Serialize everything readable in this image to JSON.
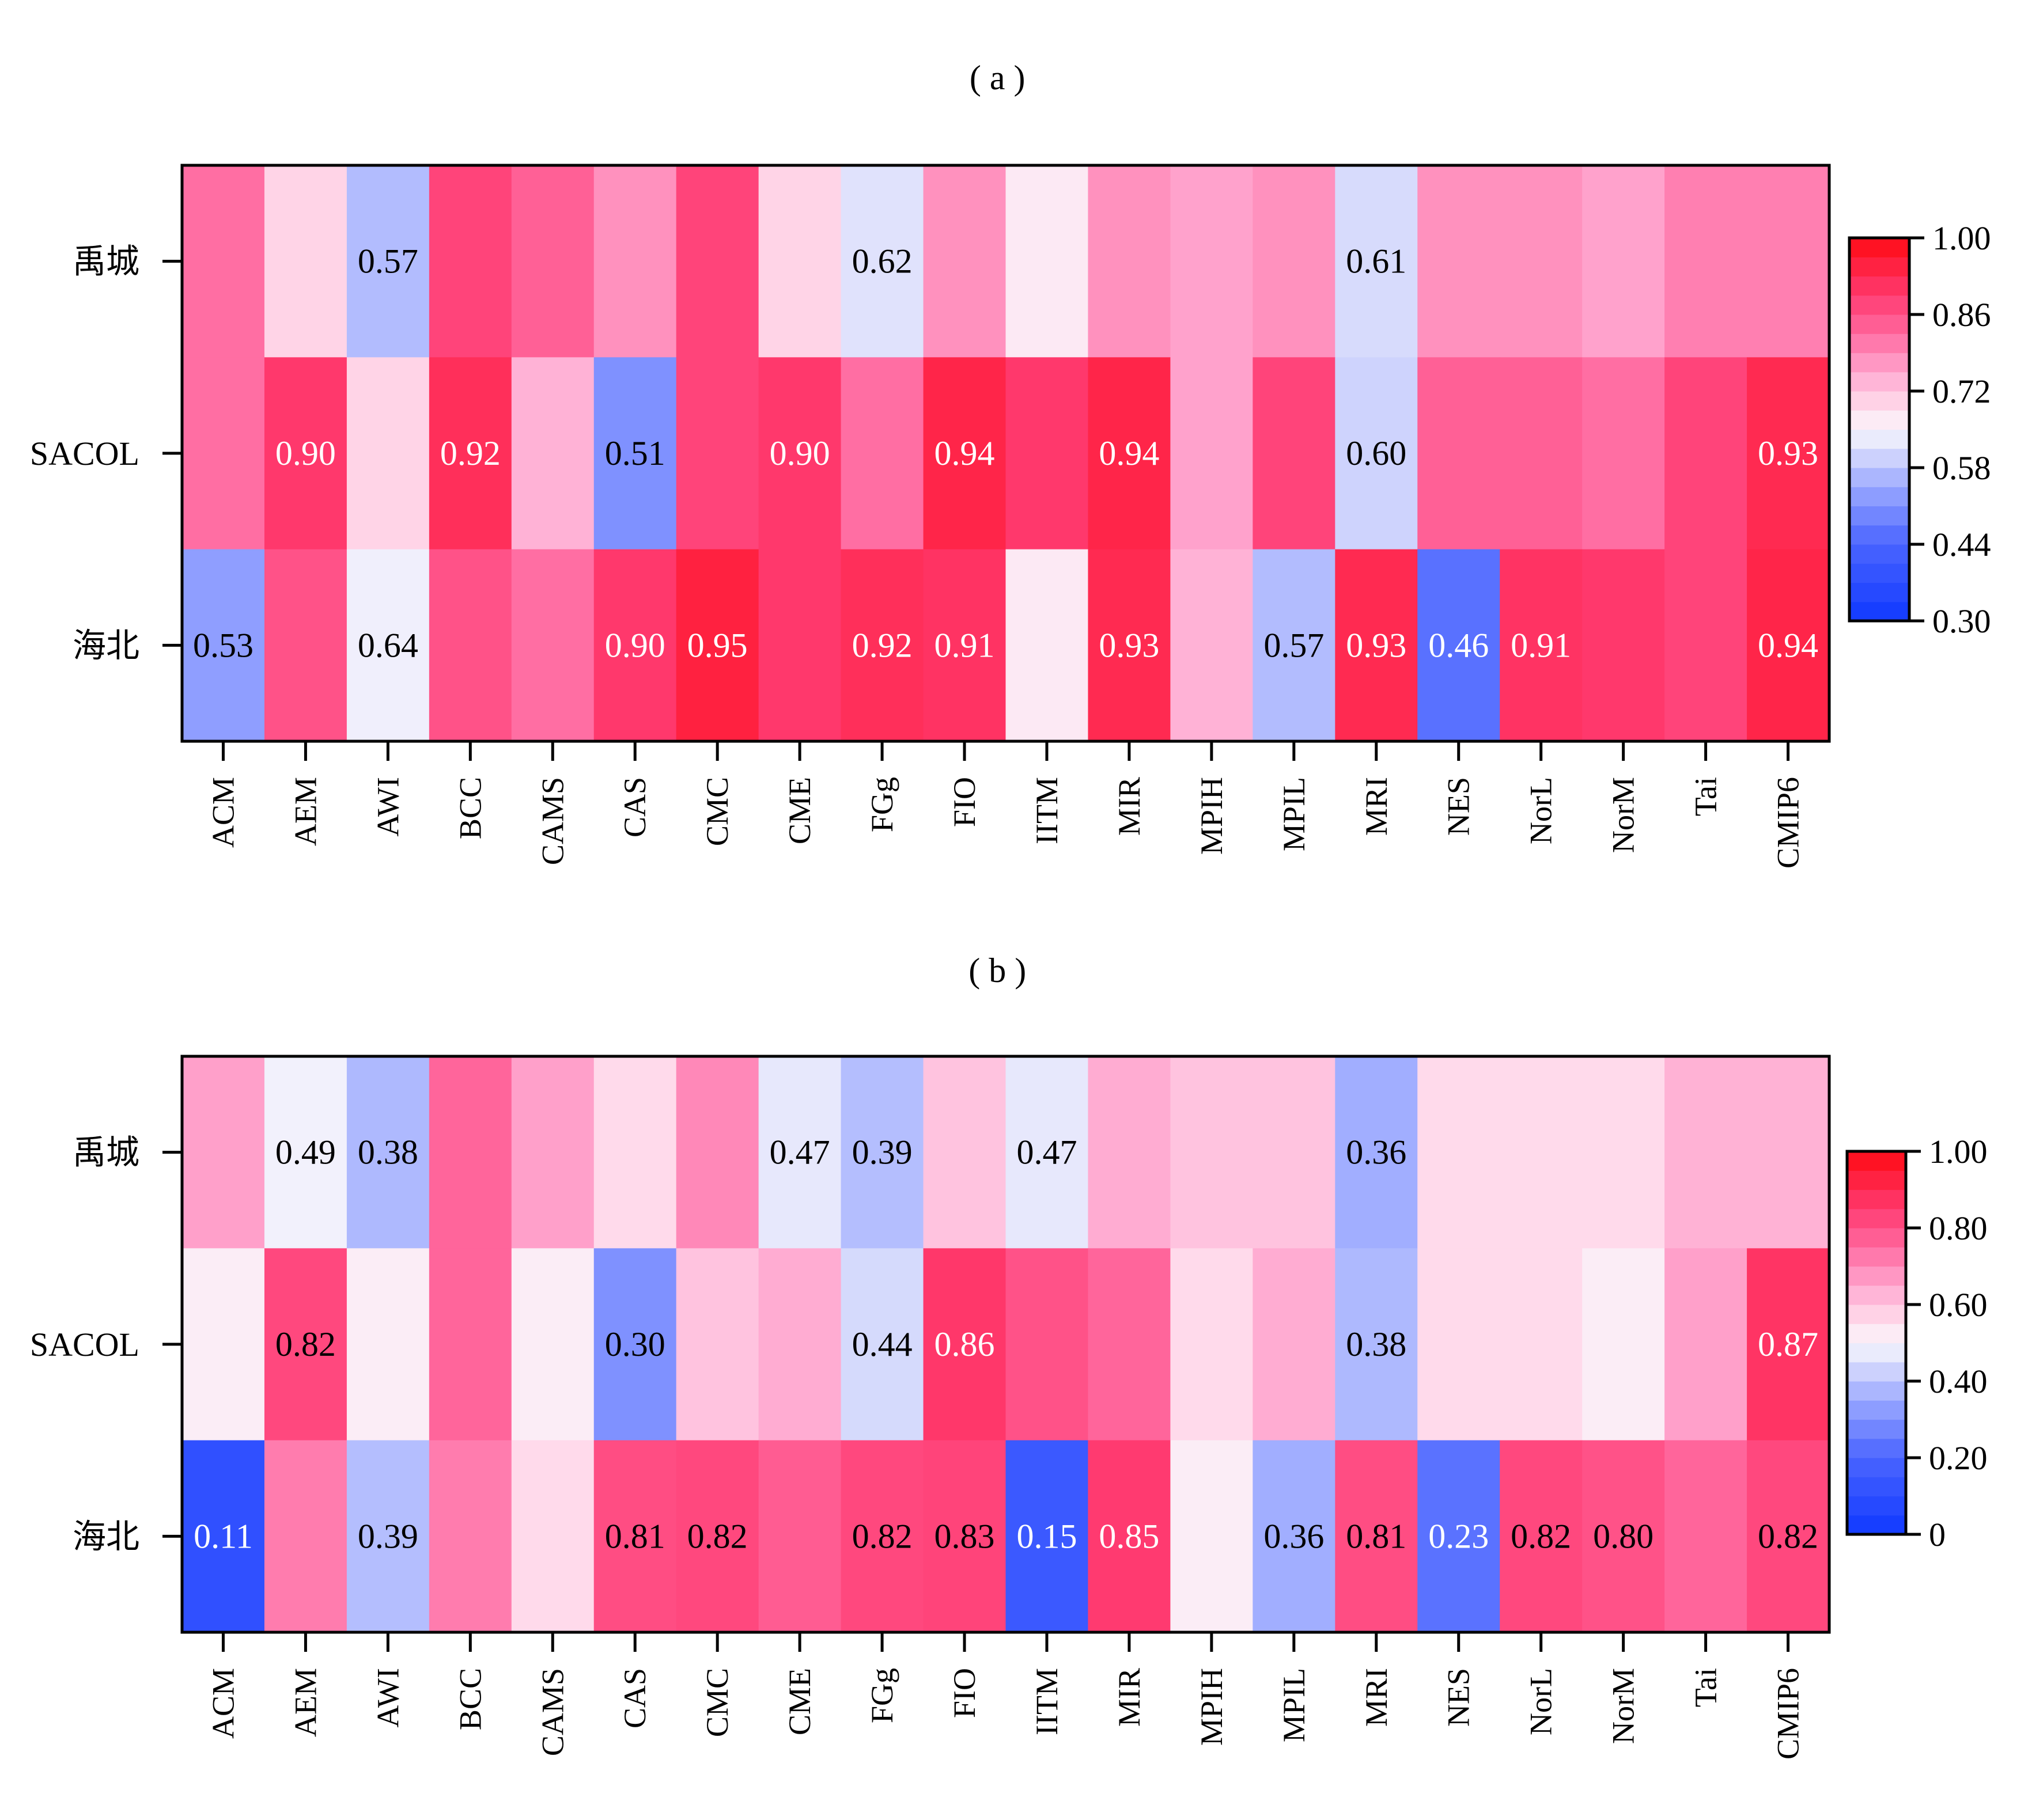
{
  "chart_data": [
    {
      "type": "heatmap",
      "title": "( a )",
      "rows": [
        "禹城",
        "SACOL",
        "海北"
      ],
      "columns": [
        "ACM",
        "AEM",
        "AWI",
        "BCC",
        "CAMS",
        "CAS",
        "CMC",
        "CME",
        "FGg",
        "FIO",
        "IITM",
        "MIR",
        "MPIH",
        "MPIL",
        "MRI",
        "NES",
        "NorL",
        "NorM",
        "Tai",
        "CMIP6"
      ],
      "values": [
        [
          0.82,
          0.7,
          0.57,
          0.88,
          0.84,
          0.78,
          0.88,
          0.7,
          0.62,
          0.78,
          0.67,
          0.78,
          0.76,
          0.78,
          0.61,
          0.78,
          0.78,
          0.76,
          0.8,
          0.8
        ],
        [
          0.82,
          0.9,
          0.7,
          0.92,
          0.74,
          0.51,
          0.88,
          0.9,
          0.82,
          0.94,
          0.9,
          0.94,
          0.76,
          0.88,
          0.6,
          0.84,
          0.84,
          0.82,
          0.88,
          0.93
        ],
        [
          0.53,
          0.86,
          0.64,
          0.86,
          0.82,
          0.9,
          0.95,
          0.9,
          0.92,
          0.91,
          0.67,
          0.93,
          0.74,
          0.57,
          0.93,
          0.46,
          0.91,
          0.9,
          0.88,
          0.94
        ]
      ],
      "labels": [
        [
          null,
          null,
          "0.57",
          null,
          null,
          null,
          null,
          null,
          "0.62",
          null,
          null,
          null,
          null,
          null,
          "0.61",
          null,
          null,
          null,
          null,
          null
        ],
        [
          null,
          "0.90",
          null,
          "0.92",
          null,
          "0.51",
          null,
          "0.90",
          null,
          "0.94",
          null,
          "0.94",
          null,
          null,
          "0.60",
          null,
          null,
          null,
          null,
          "0.93"
        ],
        [
          "0.53",
          null,
          "0.64",
          null,
          null,
          "0.90",
          "0.95",
          null,
          "0.92",
          "0.91",
          null,
          "0.93",
          null,
          "0.57",
          "0.93",
          "0.46",
          "0.91",
          null,
          null,
          "0.94"
        ]
      ],
      "colorbar": {
        "range": [
          0.3,
          1.0
        ],
        "ticks": [
          "0.30",
          "0.44",
          "0.58",
          "0.72",
          "0.86",
          "1.00"
        ],
        "tick_values": [
          0.3,
          0.44,
          0.58,
          0.72,
          0.86,
          1.0
        ]
      }
    },
    {
      "type": "heatmap",
      "title": "( b )",
      "rows": [
        "禹城",
        "SACOL",
        "海北"
      ],
      "columns": [
        "ACM",
        "AEM",
        "AWI",
        "BCC",
        "CAMS",
        "CAS",
        "CMC",
        "CME",
        "FGg",
        "FIO",
        "IITM",
        "MIR",
        "MPIH",
        "MPIL",
        "MRI",
        "NES",
        "NorL",
        "NorM",
        "Tai",
        "CMIP6"
      ],
      "values": [
        [
          0.66,
          0.49,
          0.38,
          0.76,
          0.66,
          0.56,
          0.7,
          0.47,
          0.39,
          0.6,
          0.47,
          0.64,
          0.6,
          0.6,
          0.36,
          0.56,
          0.56,
          0.56,
          0.63,
          0.63
        ],
        [
          0.52,
          0.82,
          0.52,
          0.76,
          0.52,
          0.3,
          0.6,
          0.64,
          0.44,
          0.86,
          0.8,
          0.76,
          0.56,
          0.64,
          0.38,
          0.56,
          0.56,
          0.52,
          0.66,
          0.87
        ],
        [
          0.11,
          0.72,
          0.39,
          0.72,
          0.56,
          0.81,
          0.82,
          0.78,
          0.82,
          0.83,
          0.15,
          0.85,
          0.52,
          0.36,
          0.81,
          0.23,
          0.82,
          0.8,
          0.76,
          0.82
        ]
      ],
      "labels": [
        [
          null,
          "0.49",
          "0.38",
          null,
          null,
          null,
          null,
          "0.47",
          "0.39",
          null,
          "0.47",
          null,
          null,
          null,
          "0.36",
          null,
          null,
          null,
          null,
          null
        ],
        [
          null,
          "0.82",
          null,
          null,
          null,
          "0.30",
          null,
          null,
          "0.44",
          "0.86",
          null,
          null,
          null,
          null,
          "0.38",
          null,
          null,
          null,
          null,
          "0.87"
        ],
        [
          "0.11",
          null,
          "0.39",
          null,
          null,
          "0.81",
          "0.82",
          null,
          "0.82",
          "0.83",
          "0.15",
          "0.85",
          null,
          "0.36",
          "0.81",
          "0.23",
          "0.82",
          "0.80",
          null,
          "0.82"
        ]
      ],
      "colorbar": {
        "range": [
          0,
          1.0
        ],
        "ticks": [
          "0",
          "0.20",
          "0.40",
          "0.60",
          "0.80",
          "1.00"
        ],
        "tick_values": [
          0,
          0.2,
          0.4,
          0.6,
          0.8,
          1.0
        ]
      }
    }
  ]
}
